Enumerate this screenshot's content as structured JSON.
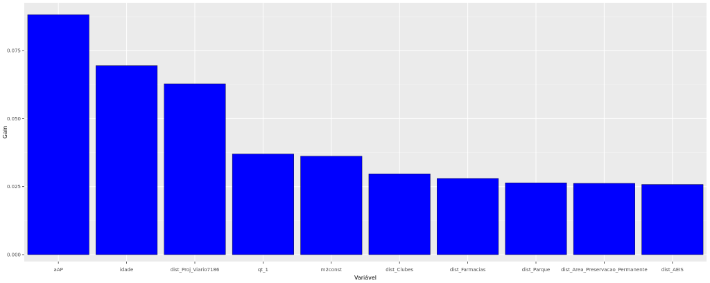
{
  "chart_data": {
    "type": "bar",
    "title": "",
    "xlabel": "Variável",
    "ylabel": "Gain",
    "categories": [
      "aAP",
      "idade",
      "dist_Proj_Viario7186",
      "qt_1",
      "m2const",
      "dist_Clubes",
      "dist_Farmacias",
      "dist_Parque",
      "dist_Area_Preservacao_Permanente",
      "dist_AEIS"
    ],
    "values": [
      0.0882,
      0.0695,
      0.0628,
      0.037,
      0.0362,
      0.0297,
      0.028,
      0.0264,
      0.0262,
      0.0258
    ],
    "ylim": [
      0,
      0.0885
    ],
    "yticks": [
      0.0,
      0.025,
      0.05,
      0.075
    ],
    "ytick_labels": [
      "0.000",
      "0.025",
      "0.050",
      "0.075"
    ],
    "grid": true,
    "legend": "none",
    "colors": {
      "bar": "#0000ff",
      "panel": "#ebebeb",
      "grid_major": "#ffffff",
      "grid_minor": "#f5f5f5"
    }
  }
}
